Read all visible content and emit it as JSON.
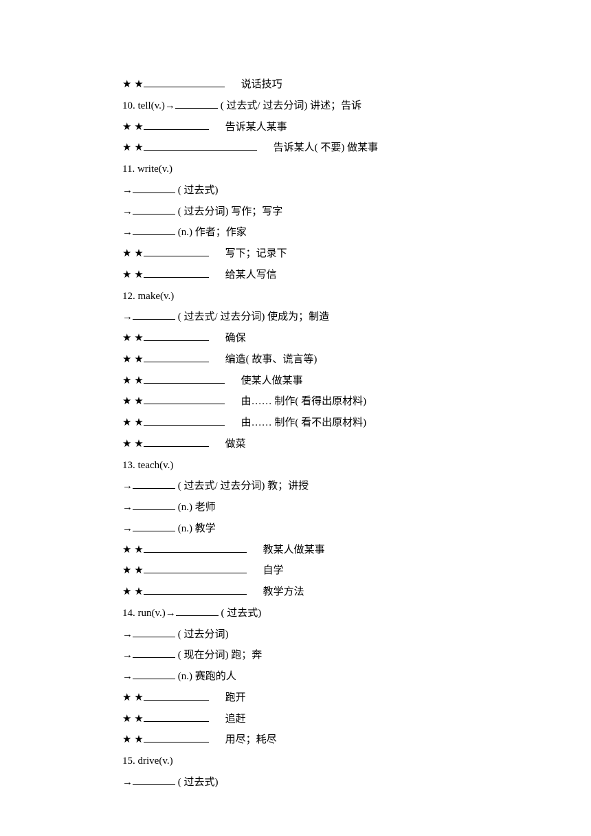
{
  "stars": "★ ★",
  "arrow": "→",
  "lines": {
    "l1_suffix": "说话技巧",
    "l2_prefix": "10. tell(v.)→",
    "l2_suffix": "( 过去式/ 过去分词)  讲述；告诉",
    "l3_suffix": "告诉某人某事",
    "l4_suffix": "告诉某人( 不要)  做某事",
    "l5": "11. write(v.)",
    "l6_suffix": "( 过去式)",
    "l7_suffix": "( 过去分词)  写作；写字",
    "l8_suffix": "(n.)  作者；作家",
    "l9_suffix": "写下；记录下",
    "l10_suffix": "给某人写信",
    "l11": "12. make(v.)",
    "l12_suffix": "( 过去式/ 过去分词)  使成为；制造",
    "l13_suffix": "确保",
    "l14_suffix": "编造( 故事、谎言等)",
    "l15_suffix": "使某人做某事",
    "l16_suffix": "由…… 制作( 看得出原材料)",
    "l17_suffix": "由…… 制作( 看不出原材料)",
    "l18_suffix": "做菜",
    "l19": "13. teach(v.)",
    "l20_suffix": "( 过去式/ 过去分词)  教；讲授",
    "l21_suffix": "(n.)  老师",
    "l22_suffix": "(n.)  教学",
    "l23_suffix": "教某人做某事",
    "l24_suffix": "自学",
    "l25_suffix": "教学方法",
    "l26_prefix": "14. run(v.)→",
    "l26_suffix": "( 过去式)",
    "l27_suffix": "( 过去分词)",
    "l28_suffix": "( 现在分词)  跑；奔",
    "l29_suffix": "(n.)  赛跑的人",
    "l30_suffix": "跑开",
    "l31_suffix": "追赶",
    "l32_suffix": "用尽；耗尽",
    "l33": "15. drive(v.)",
    "l34_suffix": "( 过去式)"
  }
}
